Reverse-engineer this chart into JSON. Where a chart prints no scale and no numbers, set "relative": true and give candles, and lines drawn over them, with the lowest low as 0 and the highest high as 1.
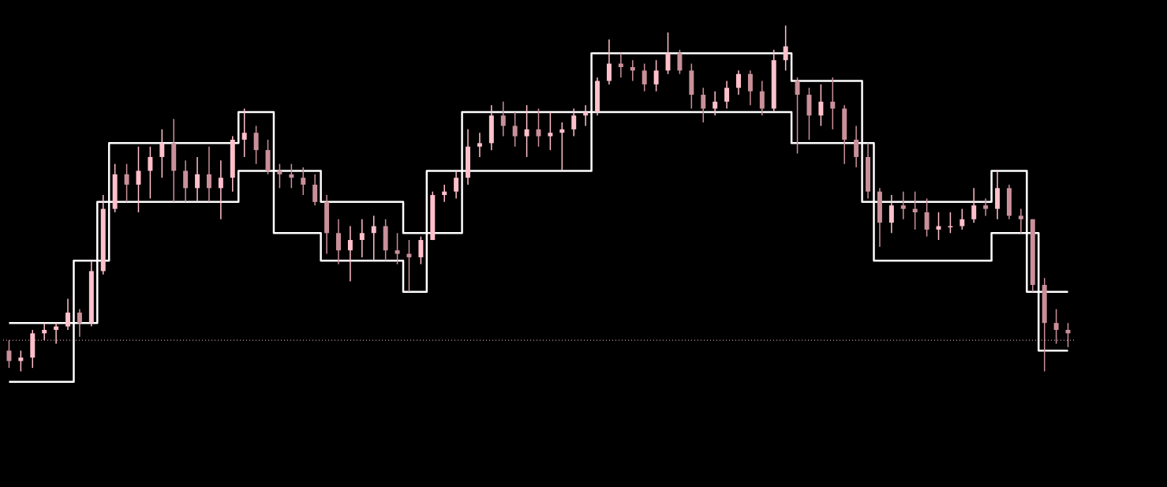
{
  "chart_data": {
    "type": "candlestick",
    "relative": true,
    "colors": [
      "#c9909a",
      "#ffc0cb",
      "#ffc0cb",
      "#ffc0cb",
      "#ffc0cb",
      "#ffc0cb",
      "#c9909a",
      "#ffc0cb",
      "#ffc0cb",
      "#ffc0cb",
      "#c9909a",
      "#ffc0cb",
      "#ffc0cb",
      "#ffc0cb",
      "#c9909a",
      "#c9909a",
      "#ffc0cb",
      "#c9909a",
      "#ffc0cb",
      "#ffc0cb",
      "#ffc0cb",
      "#c9909a",
      "#c9909a",
      "#c9909a",
      "#c9909a",
      "#c9909a",
      "#c9909a",
      "#c9909a",
      "#c9909a",
      "#ffc0cb",
      "#ffc0cb",
      "#ffc0cb",
      "#c9909a",
      "#c9909a",
      "#c9909a",
      "#ffc0cb",
      "#ffc0cb",
      "#ffc0cb",
      "#ffc0cb",
      "#ffc0cb",
      "#ffc0cb",
      "#ffc0cb",
      "#c9909a",
      "#c9909a",
      "#ffc0cb",
      "#c9909a",
      "#ffc0cb",
      "#ffc0cb",
      "#ffc0cb",
      "#ffc0cb",
      "#ffc0cb",
      "#ffc0cb",
      "#c9909a",
      "#c9909a",
      "#c9909a",
      "#ffc0cb",
      "#ffc0cb",
      "#c9909a",
      "#c9909a",
      "#c9909a",
      "#ffc0cb",
      "#ffc0cb",
      "#ffc0cb",
      "#c9909a",
      "#c9909a",
      "#ffc0cb",
      "#ffc0cb",
      "#c9909a",
      "#c9909a",
      "#ffc0cb",
      "#c9909a",
      "#c9909a",
      "#c9909a",
      "#c9909a",
      "#c9909a",
      "#ffc0cb",
      "#c9909a",
      "#c9909a",
      "#c9909a",
      "#ffc0cb",
      "#ffc0cb",
      "#ffc0cb",
      "#ffc0cb",
      "#c9909a",
      "#ffc0cb",
      "#c9909a",
      "#c9909a",
      "#c9909a",
      "#c9909a",
      "#c9909a",
      "#c9909a"
    ],
    "categories": [
      null,
      null,
      null,
      null,
      null,
      null,
      null,
      null,
      null,
      null,
      null,
      null,
      null,
      null,
      null,
      null,
      null,
      null,
      null,
      null,
      null,
      null,
      null,
      null,
      null,
      null,
      null,
      null,
      null,
      null,
      null,
      null,
      null,
      null,
      null,
      null,
      null,
      null,
      null,
      null,
      null,
      null,
      null,
      null,
      null,
      null,
      null,
      null,
      null,
      null,
      null,
      null,
      null,
      null,
      null,
      null,
      null,
      null,
      null,
      null,
      null,
      null,
      null,
      null,
      null,
      null,
      null,
      null,
      null,
      null,
      null,
      null,
      null,
      null,
      null,
      null,
      null,
      null,
      null,
      null,
      null,
      null,
      null,
      null,
      null,
      null,
      null,
      null,
      null,
      null,
      null
    ],
    "ohlc": [
      [
        0.06,
        0.09,
        0.01,
        0.03
      ],
      [
        0.03,
        0.06,
        0,
        0.04
      ],
      [
        0.04,
        0.12,
        0.01,
        0.11
      ],
      [
        0.11,
        0.14,
        0.09,
        0.12
      ],
      [
        0.12,
        0.14,
        0.08,
        0.13
      ],
      [
        0.13,
        0.21,
        0.12,
        0.17
      ],
      [
        0.17,
        0.18,
        0.1,
        0.14
      ],
      [
        0.14,
        0.32,
        0.13,
        0.29
      ],
      [
        0.29,
        0.51,
        0.28,
        0.47
      ],
      [
        0.47,
        0.6,
        0.46,
        0.57
      ],
      [
        0.57,
        0.6,
        0.49,
        0.54
      ],
      [
        0.54,
        0.65,
        0.46,
        0.58
      ],
      [
        0.58,
        0.65,
        0.5,
        0.62
      ],
      [
        0.62,
        0.7,
        0.56,
        0.66
      ],
      [
        0.66,
        0.73,
        0.49,
        0.58
      ],
      [
        0.58,
        0.61,
        0.49,
        0.53
      ],
      [
        0.53,
        0.62,
        0.49,
        0.57
      ],
      [
        0.57,
        0.65,
        0.49,
        0.53
      ],
      [
        0.53,
        0.61,
        0.44,
        0.56
      ],
      [
        0.56,
        0.68,
        0.52,
        0.67
      ],
      [
        0.67,
        0.76,
        0.62,
        0.69
      ],
      [
        0.69,
        0.71,
        0.6,
        0.64
      ],
      [
        0.64,
        0.67,
        0.57,
        0.58
      ],
      [
        0.58,
        0.6,
        0.53,
        0.57
      ],
      [
        0.57,
        0.6,
        0.53,
        0.56
      ],
      [
        0.56,
        0.59,
        0.51,
        0.54
      ],
      [
        0.54,
        0.57,
        0.48,
        0.49
      ],
      [
        0.49,
        0.51,
        0.34,
        0.4
      ],
      [
        0.4,
        0.44,
        0.31,
        0.35
      ],
      [
        0.35,
        0.42,
        0.26,
        0.38
      ],
      [
        0.38,
        0.44,
        0.33,
        0.4
      ],
      [
        0.4,
        0.45,
        0.32,
        0.42
      ],
      [
        0.42,
        0.44,
        0.32,
        0.35
      ],
      [
        0.35,
        0.4,
        0.31,
        0.34
      ],
      [
        0.34,
        0.38,
        0.23,
        0.33
      ],
      [
        0.33,
        0.39,
        0.31,
        0.38
      ],
      [
        0.38,
        0.52,
        0.38,
        0.51
      ],
      [
        0.51,
        0.54,
        0.49,
        0.52
      ],
      [
        0.52,
        0.58,
        0.5,
        0.56
      ],
      [
        0.56,
        0.7,
        0.54,
        0.65
      ],
      [
        0.65,
        0.69,
        0.62,
        0.66
      ],
      [
        0.66,
        0.77,
        0.64,
        0.74
      ],
      [
        0.74,
        0.78,
        0.68,
        0.71
      ],
      [
        0.71,
        0.75,
        0.65,
        0.68
      ],
      [
        0.68,
        0.77,
        0.62,
        0.7
      ],
      [
        0.7,
        0.76,
        0.65,
        0.68
      ],
      [
        0.68,
        0.75,
        0.64,
        0.69
      ],
      [
        0.69,
        0.72,
        0.58,
        0.7
      ],
      [
        0.7,
        0.76,
        0.68,
        0.74
      ],
      [
        0.74,
        0.77,
        0.71,
        0.75
      ],
      [
        0.75,
        0.85,
        0.74,
        0.84
      ],
      [
        0.84,
        0.96,
        0.83,
        0.89
      ],
      [
        0.89,
        0.92,
        0.85,
        0.88
      ],
      [
        0.88,
        0.9,
        0.84,
        0.87
      ],
      [
        0.87,
        0.89,
        0.81,
        0.83
      ],
      [
        0.83,
        0.9,
        0.81,
        0.87
      ],
      [
        0.87,
        0.98,
        0.86,
        0.92
      ],
      [
        0.92,
        0.93,
        0.86,
        0.87
      ],
      [
        0.87,
        0.89,
        0.76,
        0.8
      ],
      [
        0.8,
        0.82,
        0.72,
        0.76
      ],
      [
        0.76,
        0.81,
        0.74,
        0.78
      ],
      [
        0.78,
        0.84,
        0.76,
        0.82
      ],
      [
        0.82,
        0.87,
        0.8,
        0.86
      ],
      [
        0.86,
        0.87,
        0.77,
        0.81
      ],
      [
        0.81,
        0.84,
        0.74,
        0.76
      ],
      [
        0.76,
        0.93,
        0.75,
        0.9
      ],
      [
        0.9,
        1.0,
        0.87,
        0.94
      ],
      [
        0.84,
        0.85,
        0.63,
        0.8
      ],
      [
        0.8,
        0.82,
        0.67,
        0.74
      ],
      [
        0.74,
        0.83,
        0.71,
        0.78
      ],
      [
        0.78,
        0.85,
        0.7,
        0.76
      ],
      [
        0.76,
        0.77,
        0.6,
        0.67
      ],
      [
        0.67,
        0.71,
        0.59,
        0.62
      ],
      [
        0.62,
        0.66,
        0.5,
        0.52
      ],
      [
        0.52,
        0.53,
        0.36,
        0.43
      ],
      [
        0.43,
        0.51,
        0.4,
        0.48
      ],
      [
        0.48,
        0.52,
        0.44,
        0.47
      ],
      [
        0.47,
        0.52,
        0.41,
        0.46
      ],
      [
        0.46,
        0.5,
        0.39,
        0.41
      ],
      [
        0.41,
        0.46,
        0.38,
        0.42
      ],
      [
        0.42,
        0.46,
        0.4,
        0.42
      ],
      [
        0.42,
        0.47,
        0.41,
        0.44
      ],
      [
        0.44,
        0.53,
        0.43,
        0.48
      ],
      [
        0.48,
        0.5,
        0.45,
        0.47
      ],
      [
        0.47,
        0.58,
        0.44,
        0.53
      ],
      [
        0.53,
        0.54,
        0.44,
        0.45
      ],
      [
        0.45,
        0.47,
        0.4,
        0.44
      ],
      [
        0.44,
        0.44,
        0.23,
        0.25
      ],
      [
        0.25,
        0.27,
        0,
        0.14
      ],
      [
        0.14,
        0.18,
        0.08,
        0.12
      ],
      [
        0.12,
        0.14,
        0.07,
        0.11
      ]
    ],
    "series": [
      {
        "type": "step",
        "color": "#ffffff",
        "values": [
          0.14,
          0.14,
          0.14,
          0.14,
          0.14,
          0.14,
          0.32,
          0.32,
          0.49,
          0.66,
          0.66,
          0.66,
          0.66,
          0.66,
          0.66,
          0.66,
          0.66,
          0.66,
          0.66,
          0.66,
          0.75,
          0.75,
          0.75,
          0.58,
          0.58,
          0.58,
          0.58,
          0.49,
          0.49,
          0.49,
          0.49,
          0.49,
          0.49,
          0.49,
          0.4,
          0.4,
          0.58,
          0.58,
          0.58,
          0.75,
          0.75,
          0.75,
          0.75,
          0.75,
          0.75,
          0.75,
          0.75,
          0.75,
          0.75,
          0.75,
          0.92,
          0.92,
          0.92,
          0.92,
          0.92,
          0.92,
          0.92,
          0.92,
          0.92,
          0.92,
          0.92,
          0.92,
          0.92,
          0.92,
          0.92,
          0.92,
          0.92,
          0.84,
          0.84,
          0.84,
          0.84,
          0.84,
          0.84,
          0.66,
          0.49,
          0.49,
          0.49,
          0.49,
          0.49,
          0.49,
          0.49,
          0.49,
          0.49,
          0.49,
          0.58,
          0.58,
          0.58,
          0.4,
          0.23,
          0.23,
          0.23
        ]
      },
      {
        "type": "step",
        "color": "#ffffff",
        "values": [
          -0.03,
          -0.03,
          -0.03,
          -0.03,
          -0.03,
          -0.03,
          0.14,
          0.14,
          0.32,
          0.49,
          0.49,
          0.49,
          0.49,
          0.49,
          0.49,
          0.49,
          0.49,
          0.49,
          0.49,
          0.49,
          0.58,
          0.58,
          0.58,
          0.4,
          0.4,
          0.4,
          0.4,
          0.32,
          0.32,
          0.32,
          0.32,
          0.32,
          0.32,
          0.32,
          0.23,
          0.23,
          0.4,
          0.4,
          0.4,
          0.58,
          0.58,
          0.58,
          0.58,
          0.58,
          0.58,
          0.58,
          0.58,
          0.58,
          0.58,
          0.58,
          0.75,
          0.75,
          0.75,
          0.75,
          0.75,
          0.75,
          0.75,
          0.75,
          0.75,
          0.75,
          0.75,
          0.75,
          0.75,
          0.75,
          0.75,
          0.75,
          0.75,
          0.66,
          0.66,
          0.66,
          0.66,
          0.66,
          0.66,
          0.49,
          0.32,
          0.32,
          0.32,
          0.32,
          0.32,
          0.32,
          0.32,
          0.32,
          0.32,
          0.32,
          0.4,
          0.4,
          0.4,
          0.23,
          0.06,
          0.06,
          0.06
        ]
      }
    ],
    "ref_lines": [
      {
        "axis": "y",
        "value": 0.09,
        "color": "#ffc0cb",
        "line_style": "dotted"
      }
    ]
  }
}
